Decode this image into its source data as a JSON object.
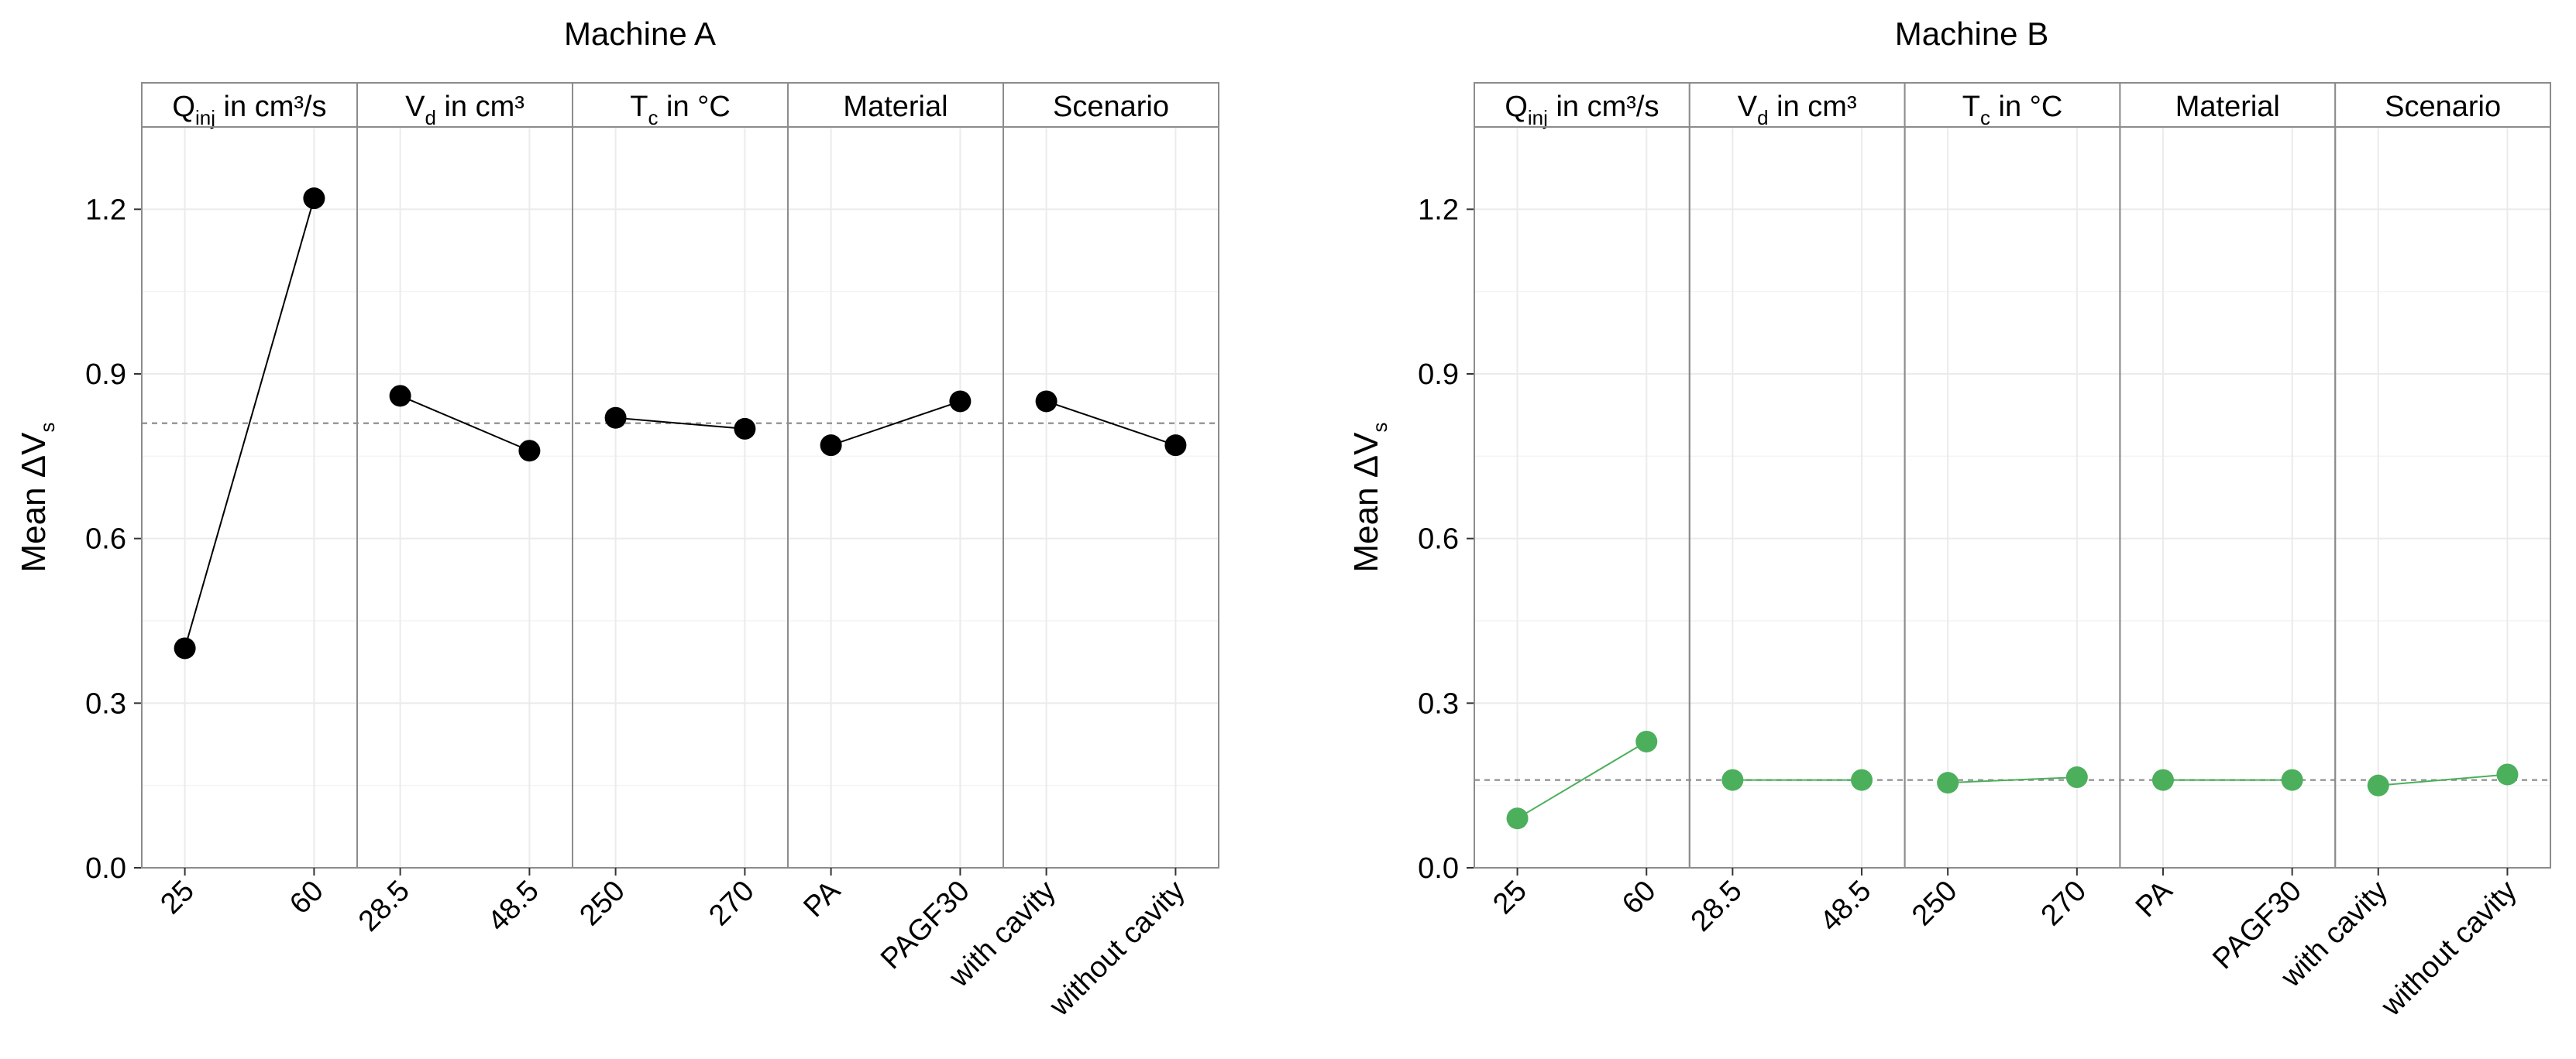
{
  "chart_data": [
    {
      "type": "line",
      "title": "Machine A",
      "ylabel": "Mean ΔV",
      "ylabel_subscript": "s",
      "ylim": [
        0,
        1.35
      ],
      "yticks": [
        0.0,
        0.3,
        0.6,
        0.9,
        1.2
      ],
      "ytick_labels": [
        "0.0",
        "0.3",
        "0.6",
        "0.9",
        "1.2"
      ],
      "reference_line": 0.81,
      "color": "#000000",
      "panels": [
        {
          "label": "Q",
          "label_sub": "inj",
          "label_rest": " in cm³/s",
          "categories": [
            "25",
            "60"
          ],
          "values": [
            0.4,
            1.22
          ]
        },
        {
          "label": "V",
          "label_sub": "d",
          "label_rest": " in cm³",
          "categories": [
            "28.5",
            "48.5"
          ],
          "values": [
            0.86,
            0.76
          ]
        },
        {
          "label": "T",
          "label_sub": "c",
          "label_rest": " in °C",
          "categories": [
            "250",
            "270"
          ],
          "values": [
            0.82,
            0.8
          ]
        },
        {
          "label": "Material",
          "label_sub": "",
          "label_rest": "",
          "categories": [
            "PA",
            "PAGF30"
          ],
          "values": [
            0.77,
            0.85
          ]
        },
        {
          "label": "Scenario",
          "label_sub": "",
          "label_rest": "",
          "categories": [
            "with cavity",
            "without cavity"
          ],
          "values": [
            0.85,
            0.77
          ]
        }
      ]
    },
    {
      "type": "line",
      "title": "Machine B",
      "ylabel": "Mean ΔV",
      "ylabel_subscript": "s",
      "ylim": [
        0,
        1.35
      ],
      "yticks": [
        0.0,
        0.3,
        0.6,
        0.9,
        1.2
      ],
      "ytick_labels": [
        "0.0",
        "0.3",
        "0.6",
        "0.9",
        "1.2"
      ],
      "reference_line": 0.16,
      "color": "#4caf5c",
      "panels": [
        {
          "label": "Q",
          "label_sub": "inj",
          "label_rest": " in cm³/s",
          "categories": [
            "25",
            "60"
          ],
          "values": [
            0.09,
            0.23
          ]
        },
        {
          "label": "V",
          "label_sub": "d",
          "label_rest": " in cm³",
          "categories": [
            "28.5",
            "48.5"
          ],
          "values": [
            0.16,
            0.16
          ]
        },
        {
          "label": "T",
          "label_sub": "c",
          "label_rest": " in °C",
          "categories": [
            "250",
            "270"
          ],
          "values": [
            0.155,
            0.165
          ]
        },
        {
          "label": "Material",
          "label_sub": "",
          "label_rest": "",
          "categories": [
            "PA",
            "PAGF30"
          ],
          "values": [
            0.16,
            0.16
          ]
        },
        {
          "label": "Scenario",
          "label_sub": "",
          "label_rest": "",
          "categories": [
            "with cavity",
            "without cavity"
          ],
          "values": [
            0.15,
            0.17
          ]
        }
      ]
    }
  ]
}
